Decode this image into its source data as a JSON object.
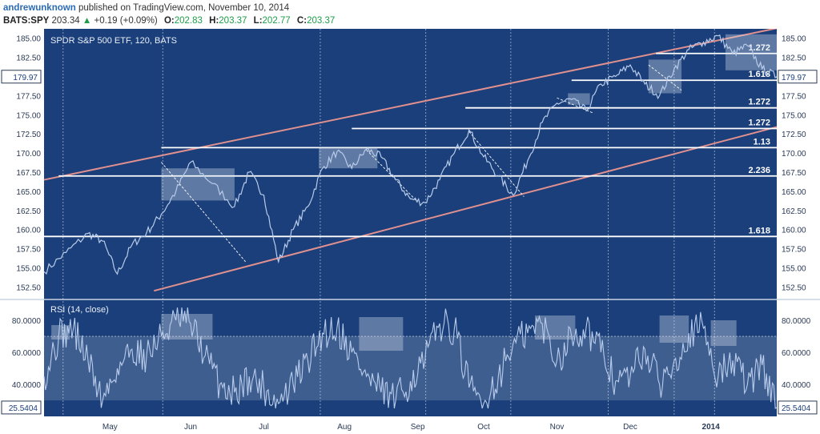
{
  "header": {
    "author": "andrewunknown",
    "published": "published on TradingView.com, November 10, 2014",
    "symbol": "BATS:SPY",
    "last": "203.34",
    "change_arrow": "▲",
    "change": "+0.19 (+0.09%)",
    "o_label": "O:",
    "o": "202.83",
    "h_label": "H:",
    "h": "203.37",
    "l_label": "L:",
    "l": "202.77",
    "c_label": "C:",
    "c": "203.37"
  },
  "colors": {
    "background": "#1b3f7a",
    "price_line": "#b8cbea",
    "channel": "#e0908e",
    "level_line": "#ffffff",
    "highlight_box": "#dce4f0",
    "rsi_band": "#e6ecf5"
  },
  "chart_data": [
    {
      "type": "line",
      "title": "SPDR S&P 500 ETF, 120, BATS",
      "x_tick_labels": [
        "May",
        "Jun",
        "Jul",
        "Aug",
        "Sep",
        "Oct",
        "Nov",
        "Dec",
        "2014"
      ],
      "y_tick_labels": [
        "185.00",
        "182.50",
        "180.00",
        "177.50",
        "175.00",
        "172.50",
        "170.00",
        "167.50",
        "165.00",
        "162.50",
        "160.00",
        "157.50",
        "155.00",
        "152.50"
      ],
      "ylim": [
        151.5,
        185.8
      ],
      "grid": true,
      "last_price_label_left": "179.97",
      "last_price_label_right": "179.97",
      "series": [
        {
          "x": [
            0,
            0.3,
            0.6,
            0.8,
            1.0,
            1.2,
            1.4,
            1.6,
            1.8,
            2.0,
            2.3,
            2.6,
            2.8,
            3.0,
            3.2,
            3.4,
            3.6,
            3.8,
            4.0,
            4.2,
            4.4,
            4.6,
            4.8,
            5.0,
            5.2,
            5.4,
            5.6,
            5.8,
            6.0,
            6.2,
            6.4,
            6.6,
            6.8,
            7.0,
            7.2,
            7.4,
            7.6,
            7.8,
            8.0,
            8.2,
            8.4,
            8.6,
            8.8,
            9.0,
            9.2,
            9.4,
            9.6,
            9.8,
            10.0
          ],
          "values": [
            154.5,
            157.0,
            159.5,
            158.5,
            154.2,
            158.0,
            159.6,
            162.0,
            165.0,
            168.8,
            166.0,
            163.0,
            167.5,
            164.5,
            155.8,
            160.0,
            163.0,
            168.0,
            170.2,
            168.0,
            170.5,
            169.5,
            166.5,
            164.0,
            163.5,
            166.5,
            170.0,
            173.0,
            169.5,
            167.0,
            164.5,
            169.0,
            174.0,
            176.5,
            177.0,
            175.5,
            179.0,
            180.0,
            181.5,
            179.0,
            177.5,
            181.0,
            183.5,
            184.5,
            185.3,
            183.0,
            184.0,
            181.0,
            179.97
          ]
        }
      ],
      "levels": [
        {
          "label": "1.272",
          "value": 183.0
        },
        {
          "label": "1.618",
          "value": 179.5
        },
        {
          "label": "1.272",
          "value": 175.9
        },
        {
          "label": "1.272",
          "value": 173.2
        },
        {
          "label": "1.13",
          "value": 170.7
        },
        {
          "label": "2.236",
          "value": 167.0
        },
        {
          "label": "1.618",
          "value": 159.1
        }
      ],
      "channel": {
        "upper": {
          "x": [
            0,
            10
          ],
          "values": [
            166.5,
            186.3
          ]
        },
        "lower": {
          "x": [
            1.5,
            10
          ],
          "values": [
            152.0,
            173.4
          ]
        }
      }
    },
    {
      "type": "line",
      "title": "RSI (14, close)",
      "y_tick_labels": [
        "80.0000",
        "60.0000",
        "40.0000"
      ],
      "ylim": [
        24,
        90
      ],
      "band": [
        30,
        70
      ],
      "current_value_label_left": "25.5404",
      "current_value_label_right": "25.5404",
      "series": [
        {
          "x": [
            0,
            0.2,
            0.4,
            0.6,
            0.8,
            1.0,
            1.2,
            1.4,
            1.6,
            1.8,
            2.0,
            2.2,
            2.4,
            2.6,
            2.8,
            3.0,
            3.2,
            3.4,
            3.6,
            3.8,
            4.0,
            4.2,
            4.4,
            4.6,
            4.8,
            5.0,
            5.2,
            5.4,
            5.6,
            5.8,
            6.0,
            6.2,
            6.4,
            6.6,
            6.8,
            7.0,
            7.2,
            7.4,
            7.6,
            7.8,
            8.0,
            8.2,
            8.4,
            8.6,
            8.8,
            9.0,
            9.2,
            9.4,
            9.6,
            9.8,
            10.0
          ],
          "values": [
            45,
            70,
            75,
            55,
            30,
            50,
            62,
            58,
            70,
            80,
            78,
            58,
            40,
            35,
            45,
            38,
            28,
            40,
            55,
            72,
            76,
            60,
            45,
            35,
            30,
            42,
            55,
            78,
            75,
            38,
            28,
            45,
            65,
            72,
            78,
            55,
            70,
            76,
            60,
            42,
            45,
            62,
            40,
            55,
            72,
            75,
            45,
            55,
            40,
            52,
            25.5
          ]
        }
      ],
      "highlight_boxes": [
        {
          "x": [
            0.1,
            0.35
          ],
          "values": [
            68,
            77
          ]
        },
        {
          "x": [
            1.6,
            2.3
          ],
          "values": [
            68,
            84
          ]
        },
        {
          "x": [
            4.3,
            4.9
          ],
          "values": [
            61,
            82
          ]
        },
        {
          "x": [
            6.7,
            7.25
          ],
          "values": [
            68,
            83
          ]
        },
        {
          "x": [
            8.4,
            8.8
          ],
          "values": [
            66,
            83
          ]
        },
        {
          "x": [
            9.1,
            9.45
          ],
          "values": [
            64,
            80
          ]
        }
      ]
    }
  ]
}
